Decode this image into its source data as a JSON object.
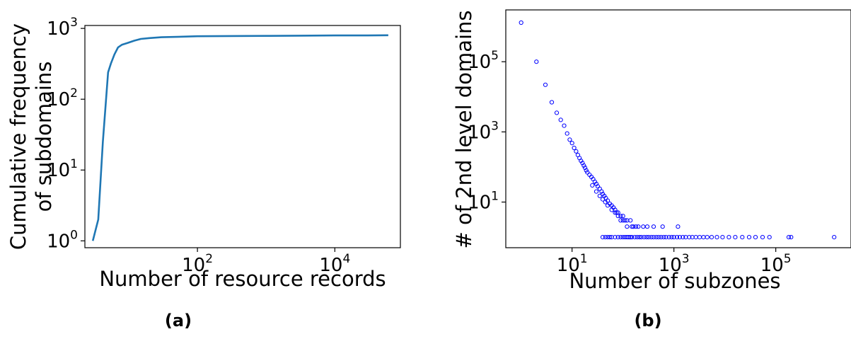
{
  "chart_data": [
    {
      "type": "line",
      "caption": "(a)",
      "xlabel": "Number of resource records",
      "ylabel": [
        "Cumulative frequency",
        "of subdomains"
      ],
      "x_scale": "log",
      "y_scale": "log",
      "xlim": [
        2.3,
        90000
      ],
      "ylim": [
        0.8,
        1100
      ],
      "x_ticks": [
        {
          "base": "10",
          "exp": "2",
          "value": 100
        },
        {
          "base": "10",
          "exp": "4",
          "value": 10000
        }
      ],
      "y_ticks": [
        {
          "base": "10",
          "exp": "0",
          "value": 1
        },
        {
          "base": "10",
          "exp": "1",
          "value": 10
        },
        {
          "base": "10",
          "exp": "2",
          "value": 100
        },
        {
          "base": "10",
          "exp": "3",
          "value": 1000
        }
      ],
      "line_color": "#1f77b4",
      "series": [
        {
          "x": [
            3,
            3.6,
            4.2,
            5.0,
            5.5,
            6.2,
            7.0,
            8.0,
            9.5,
            12,
            15,
            20,
            30,
            50,
            100,
            300,
            1000,
            3000,
            10000,
            30000,
            60000
          ],
          "y": [
            1,
            2,
            25,
            240,
            320,
            430,
            540,
            590,
            620,
            670,
            710,
            730,
            750,
            760,
            775,
            780,
            785,
            790,
            795,
            795,
            800
          ]
        }
      ]
    },
    {
      "type": "scatter",
      "caption": "(b)",
      "xlabel": "Number of subzones",
      "ylabel": [
        "# of 2nd level domains"
      ],
      "x_scale": "log",
      "y_scale": "log",
      "xlim": [
        0.5,
        3000000
      ],
      "ylim": [
        0.5,
        3000000
      ],
      "x_ticks": [
        {
          "base": "10",
          "exp": "1",
          "value": 10
        },
        {
          "base": "10",
          "exp": "3",
          "value": 1000
        },
        {
          "base": "10",
          "exp": "5",
          "value": 100000
        }
      ],
      "y_ticks": [
        {
          "base": "10",
          "exp": "1",
          "value": 10
        },
        {
          "base": "10",
          "exp": "3",
          "value": 1000
        },
        {
          "base": "10",
          "exp": "5",
          "value": 100000
        }
      ],
      "marker_color": "#0000ff",
      "series": [
        {
          "points": [
            [
              1,
              1300000
            ],
            [
              2,
              100000
            ],
            [
              3,
              22000
            ],
            [
              4,
              7000
            ],
            [
              5,
              3500
            ],
            [
              6,
              2200
            ],
            [
              7,
              1500
            ],
            [
              8,
              900
            ],
            [
              9,
              600
            ],
            [
              10,
              480
            ],
            [
              11,
              350
            ],
            [
              12,
              280
            ],
            [
              13,
              220
            ],
            [
              14,
              180
            ],
            [
              15,
              150
            ],
            [
              16,
              130
            ],
            [
              17,
              110
            ],
            [
              18,
              95
            ],
            [
              19,
              80
            ],
            [
              20,
              70
            ],
            [
              22,
              60
            ],
            [
              24,
              52
            ],
            [
              26,
              45
            ],
            [
              28,
              38
            ],
            [
              30,
              33
            ],
            [
              32,
              28
            ],
            [
              35,
              24
            ],
            [
              38,
              20
            ],
            [
              40,
              17
            ],
            [
              43,
              15
            ],
            [
              46,
              13
            ],
            [
              50,
              11
            ],
            [
              55,
              9
            ],
            [
              60,
              8
            ],
            [
              65,
              7
            ],
            [
              70,
              6
            ],
            [
              75,
              5
            ],
            [
              80,
              5
            ],
            [
              90,
              4
            ],
            [
              100,
              4
            ],
            [
              110,
              3
            ],
            [
              120,
              3
            ],
            [
              140,
              3
            ],
            [
              160,
              2
            ],
            [
              180,
              2
            ],
            [
              200,
              2
            ],
            [
              250,
              2
            ],
            [
              300,
              2
            ],
            [
              400,
              2
            ],
            [
              600,
              2
            ],
            [
              1200,
              2
            ],
            [
              25,
              30
            ],
            [
              30,
              20
            ],
            [
              35,
              15
            ],
            [
              40,
              12
            ],
            [
              45,
              10
            ],
            [
              50,
              8
            ],
            [
              60,
              6
            ],
            [
              70,
              5
            ],
            [
              80,
              4
            ],
            [
              90,
              3
            ],
            [
              100,
              3
            ],
            [
              120,
              2
            ],
            [
              150,
              2
            ],
            [
              40,
              1
            ],
            [
              45,
              1
            ],
            [
              50,
              1
            ],
            [
              55,
              1
            ],
            [
              60,
              1
            ],
            [
              70,
              1
            ],
            [
              80,
              1
            ],
            [
              90,
              1
            ],
            [
              100,
              1
            ],
            [
              110,
              1
            ],
            [
              120,
              1
            ],
            [
              130,
              1
            ],
            [
              140,
              1
            ],
            [
              150,
              1
            ],
            [
              170,
              1
            ],
            [
              190,
              1
            ],
            [
              210,
              1
            ],
            [
              230,
              1
            ],
            [
              260,
              1
            ],
            [
              290,
              1
            ],
            [
              320,
              1
            ],
            [
              360,
              1
            ],
            [
              400,
              1
            ],
            [
              450,
              1
            ],
            [
              500,
              1
            ],
            [
              560,
              1
            ],
            [
              630,
              1
            ],
            [
              700,
              1
            ],
            [
              800,
              1
            ],
            [
              900,
              1
            ],
            [
              1000,
              1
            ],
            [
              1150,
              1
            ],
            [
              1300,
              1
            ],
            [
              1500,
              1
            ],
            [
              1700,
              1
            ],
            [
              2000,
              1
            ],
            [
              2300,
              1
            ],
            [
              2700,
              1
            ],
            [
              3200,
              1
            ],
            [
              3800,
              1
            ],
            [
              4500,
              1
            ],
            [
              5500,
              1
            ],
            [
              7000,
              1
            ],
            [
              9000,
              1
            ],
            [
              12000,
              1
            ],
            [
              16000,
              1
            ],
            [
              22000,
              1
            ],
            [
              30000,
              1
            ],
            [
              40000,
              1
            ],
            [
              55000,
              1
            ],
            [
              75000,
              1
            ],
            [
              180000,
              1
            ],
            [
              200000,
              1
            ],
            [
              1400000,
              1
            ]
          ]
        }
      ]
    }
  ]
}
